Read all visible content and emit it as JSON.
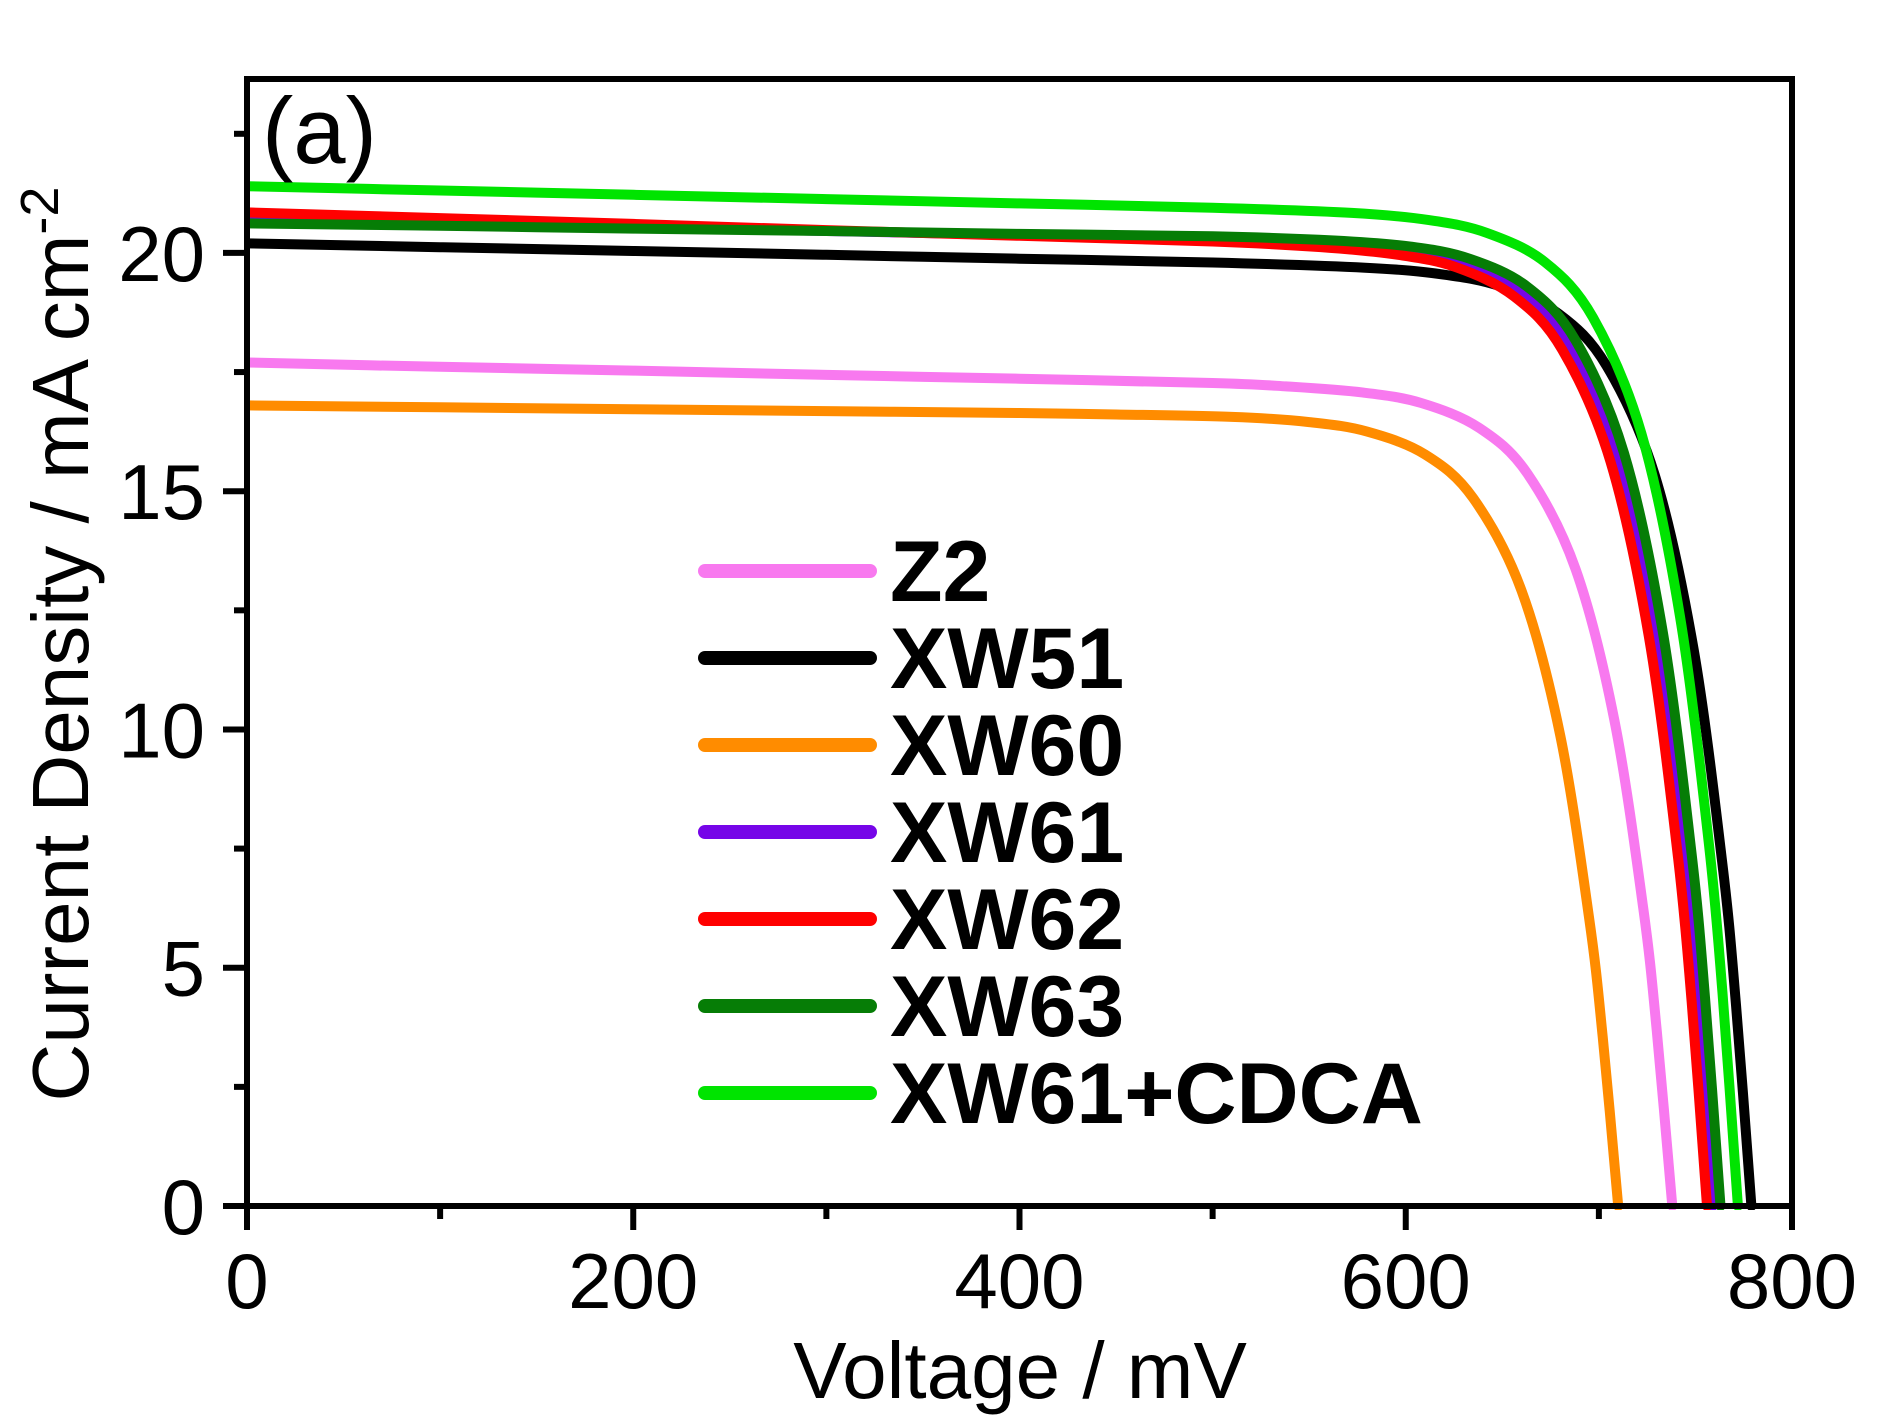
{
  "figure": {
    "panel_label": "(a)"
  },
  "axes": {
    "x": {
      "label": "Voltage / mV",
      "min": 0,
      "max": 800,
      "major_ticks": [
        0,
        200,
        400,
        600,
        800
      ],
      "minor_ticks": [
        100,
        300,
        500,
        700
      ]
    },
    "y": {
      "label_main": "Current Density / mA cm",
      "label_sup": "-2",
      "min": 0,
      "max": 23.65,
      "major_ticks": [
        0,
        5,
        10,
        15,
        20
      ],
      "minor_ticks": [
        2.5,
        7.5,
        12.5,
        17.5,
        22.5
      ]
    }
  },
  "chart_data": {
    "type": "line",
    "title": "(a)",
    "xlabel": "Voltage / mV",
    "ylabel": "Current Density / mA cm^-2",
    "xlim": [
      0,
      800
    ],
    "ylim": [
      0,
      23.65
    ],
    "grid": false,
    "legend_position": "center-left inside plot",
    "series": [
      {
        "name": "Z2",
        "color": "#F879EF",
        "jsc_mA_cm2": 17.7,
        "voc_mV": 738,
        "points": [
          [
            0,
            17.7
          ],
          [
            100,
            17.61
          ],
          [
            200,
            17.53
          ],
          [
            300,
            17.44
          ],
          [
            400,
            17.36
          ],
          [
            500,
            17.27
          ],
          [
            538,
            17.2
          ],
          [
            578,
            17.07
          ],
          [
            608,
            16.85
          ],
          [
            638,
            16.33
          ],
          [
            663,
            15.37
          ],
          [
            688,
            13.36
          ],
          [
            708,
            10.2
          ],
          [
            723,
            6.24
          ],
          [
            730,
            3.67
          ],
          [
            738,
            0
          ]
        ]
      },
      {
        "name": "XW51",
        "color": "#000000",
        "jsc_mA_cm2": 20.2,
        "voc_mV": 779,
        "points": [
          [
            0,
            20.2
          ],
          [
            100,
            20.12
          ],
          [
            200,
            20.04
          ],
          [
            300,
            19.96
          ],
          [
            400,
            19.88
          ],
          [
            500,
            19.8
          ],
          [
            579,
            19.69
          ],
          [
            619,
            19.55
          ],
          [
            649,
            19.3
          ],
          [
            679,
            18.73
          ],
          [
            704,
            17.63
          ],
          [
            729,
            15.33
          ],
          [
            749,
            11.7
          ],
          [
            764,
            7.16
          ],
          [
            771,
            4.22
          ],
          [
            779,
            0
          ]
        ]
      },
      {
        "name": "XW60",
        "color": "#FF8C00",
        "jsc_mA_cm2": 16.8,
        "voc_mV": 710,
        "points": [
          [
            0,
            16.8
          ],
          [
            100,
            16.76
          ],
          [
            200,
            16.72
          ],
          [
            300,
            16.68
          ],
          [
            400,
            16.64
          ],
          [
            450,
            16.61
          ],
          [
            510,
            16.56
          ],
          [
            550,
            16.45
          ],
          [
            580,
            16.25
          ],
          [
            610,
            15.77
          ],
          [
            635,
            14.85
          ],
          [
            660,
            12.91
          ],
          [
            680,
            9.87
          ],
          [
            695,
            6.03
          ],
          [
            702,
            3.55
          ],
          [
            710,
            0
          ]
        ]
      },
      {
        "name": "XW61",
        "color": "#7605E8",
        "jsc_mA_cm2": 20.7,
        "voc_mV": 759,
        "points": [
          [
            0,
            20.72
          ],
          [
            100,
            20.63
          ],
          [
            200,
            20.55
          ],
          [
            300,
            20.46
          ],
          [
            400,
            20.38
          ],
          [
            500,
            20.29
          ],
          [
            559,
            20.19
          ],
          [
            599,
            20.05
          ],
          [
            629,
            19.79
          ],
          [
            659,
            19.19
          ],
          [
            684,
            18.06
          ],
          [
            709,
            15.71
          ],
          [
            729,
            11.99
          ],
          [
            744,
            7.34
          ],
          [
            751,
            4.32
          ],
          [
            759,
            0
          ]
        ]
      },
      {
        "name": "XW62",
        "color": "#FF0000",
        "jsc_mA_cm2": 20.85,
        "voc_mV": 756,
        "points": [
          [
            0,
            20.85
          ],
          [
            100,
            20.73
          ],
          [
            200,
            20.61
          ],
          [
            300,
            20.48
          ],
          [
            400,
            20.36
          ],
          [
            500,
            20.24
          ],
          [
            556,
            20.12
          ],
          [
            596,
            19.96
          ],
          [
            626,
            19.7
          ],
          [
            656,
            19.09
          ],
          [
            681,
            17.97
          ],
          [
            706,
            15.62
          ],
          [
            726,
            11.92
          ],
          [
            741,
            7.3
          ],
          [
            748,
            4.3
          ],
          [
            756,
            0
          ]
        ]
      },
      {
        "name": "XW63",
        "color": "#067D06",
        "jsc_mA_cm2": 20.6,
        "voc_mV": 763,
        "points": [
          [
            0,
            20.62
          ],
          [
            100,
            20.57
          ],
          [
            200,
            20.51
          ],
          [
            300,
            20.46
          ],
          [
            400,
            20.4
          ],
          [
            500,
            20.35
          ],
          [
            563,
            20.26
          ],
          [
            603,
            20.13
          ],
          [
            633,
            19.88
          ],
          [
            663,
            19.29
          ],
          [
            688,
            18.16
          ],
          [
            713,
            15.8
          ],
          [
            733,
            12.07
          ],
          [
            748,
            7.39
          ],
          [
            755,
            4.35
          ],
          [
            763,
            0
          ]
        ]
      },
      {
        "name": "XW61+CDCA",
        "color": "#00E400",
        "jsc_mA_cm2": 21.4,
        "voc_mV": 772,
        "points": [
          [
            0,
            21.4
          ],
          [
            100,
            21.31
          ],
          [
            200,
            21.22
          ],
          [
            300,
            21.13
          ],
          [
            400,
            21.04
          ],
          [
            500,
            20.95
          ],
          [
            572,
            20.84
          ],
          [
            612,
            20.69
          ],
          [
            642,
            20.42
          ],
          [
            672,
            19.81
          ],
          [
            697,
            18.64
          ],
          [
            722,
            16.21
          ],
          [
            742,
            12.37
          ],
          [
            757,
            7.58
          ],
          [
            764,
            4.47
          ],
          [
            772,
            0
          ]
        ]
      }
    ]
  }
}
